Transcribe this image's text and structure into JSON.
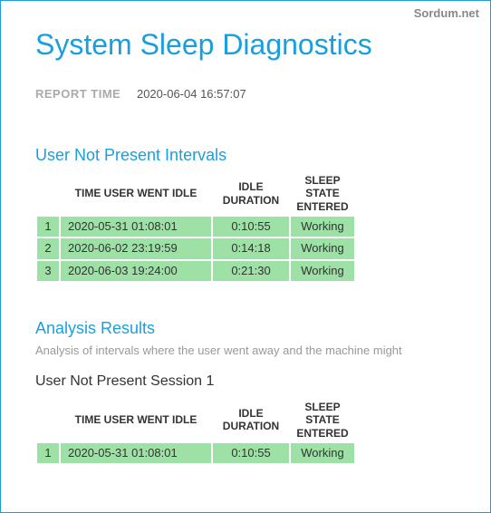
{
  "watermark": "Sordum.net",
  "page_title": "System Sleep Diagnostics",
  "report_time_label": "REPORT TIME",
  "report_time_value": "2020-06-04 16:57:07",
  "colors": {
    "accent": "#1a9fde",
    "row_bg": "#9de1a7",
    "muted": "#aaa",
    "subtext": "#999",
    "text": "#333"
  },
  "columns": {
    "idx": "",
    "time": "TIME USER WENT IDLE",
    "duration": "IDLE DURATION",
    "state": "SLEEP STATE ENTERED"
  },
  "section1": {
    "title": "User Not Present Intervals",
    "rows": [
      {
        "n": "1",
        "time": "2020-05-31  01:08:01",
        "dur": "0:10:55",
        "state": "Working"
      },
      {
        "n": "2",
        "time": "2020-06-02  23:19:59",
        "dur": "0:14:18",
        "state": "Working"
      },
      {
        "n": "3",
        "time": "2020-06-03  19:24:00",
        "dur": "0:21:30",
        "state": "Working"
      }
    ]
  },
  "section2": {
    "title": "Analysis Results",
    "subtext": "Analysis of intervals where the user went away and the machine might",
    "session_title": "User Not Present Session 1",
    "rows": [
      {
        "n": "1",
        "time": "2020-05-31  01:08:01",
        "dur": "0:10:55",
        "state": "Working"
      }
    ]
  }
}
